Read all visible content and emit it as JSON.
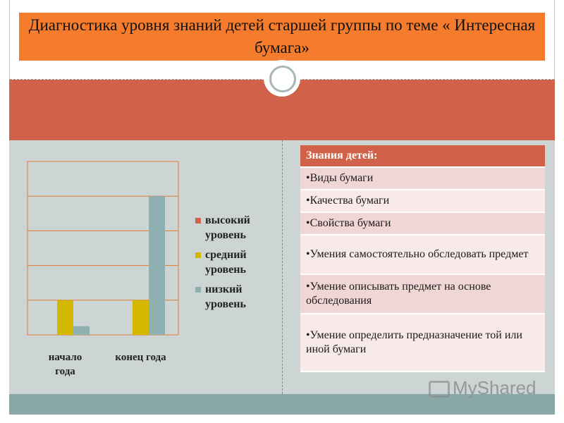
{
  "slide": {
    "title": "Диагностика уровня  знаний детей старшей группы по теме « Интересная бумага»"
  },
  "knowledge": {
    "header": "Знания детей:",
    "items": [
      "•Виды бумаги",
      "•Качества бумаги",
      "•Свойства бумаги",
      "•Умения самостоятельно обследовать предмет",
      "•Умение описывать предмет на основе обследования",
      "•Умение определить предназначение той или иной бумаги"
    ]
  },
  "watermark": {
    "text": "MyShared"
  },
  "colors": {
    "high": "#d0624a",
    "medium": "#d4b800",
    "low": "#8fb0b0",
    "title_bg": "#f47c2c",
    "axis": "#e07a30"
  },
  "chart_data": {
    "type": "bar",
    "categories": [
      "начало года",
      "конец года"
    ],
    "category_lines": [
      [
        "начало",
        "года"
      ],
      [
        "конец года"
      ]
    ],
    "series": [
      {
        "name": "высокий уровень",
        "legend_lines": [
          "высокий",
          "уровень"
        ],
        "color": "#d0624a",
        "values": [
          0,
          0
        ]
      },
      {
        "name": "средний уровень",
        "legend_lines": [
          "средний",
          "уровень"
        ],
        "color": "#d4b800",
        "values": [
          1,
          1
        ]
      },
      {
        "name": "низкий уровень",
        "legend_lines": [
          "низкий",
          "уровень"
        ],
        "color": "#8fb0b0",
        "values": [
          0.25,
          4
        ]
      }
    ],
    "ylim": [
      0,
      5
    ],
    "grid": true,
    "legend": "right",
    "title": "",
    "xlabel": "",
    "ylabel": ""
  }
}
